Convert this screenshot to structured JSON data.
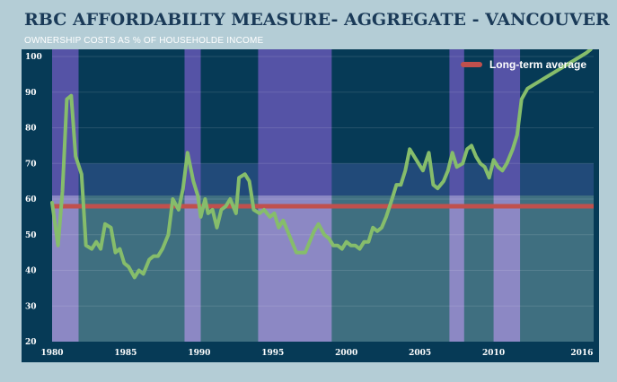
{
  "title": "RBC AFFORDABILTY MEASURE- AGGREGATE - VANCOUVER",
  "subtitle": "OWNERSHIP COSTS AS % OF HOUSEHOLDE INCOME",
  "legend": {
    "average_label": "Long-term average"
  },
  "colors": {
    "background": "#063a56",
    "recession_band": "#5553a6",
    "high_zone": "#214a79",
    "mid_zone": "#3f6f80",
    "mid_zone_recession": "#8c88c4",
    "series_line": "#86bd6b",
    "average_line": "#c0504d"
  },
  "chart_data": {
    "type": "line",
    "title": "RBC AFFORDABILTY MEASURE- AGGREGATE - VANCOUVER",
    "subtitle": "OWNERSHIP COSTS AS % OF HOUSEHOLDE INCOME",
    "xlabel": "",
    "ylabel": "",
    "xlim": [
      1980,
      2016.8
    ],
    "ylim": [
      20,
      100
    ],
    "x_ticks": [
      1980,
      1985,
      1990,
      1995,
      2000,
      2005,
      2010,
      2016
    ],
    "y_ticks": [
      20,
      30,
      40,
      50,
      60,
      70,
      80,
      90,
      100
    ],
    "grid": "horizontal",
    "legend_position": "top-right",
    "long_term_average": 58,
    "zones": [
      {
        "from": 58,
        "to": 61
      },
      {
        "from": 61,
        "to": 70
      }
    ],
    "recession_bands": [
      {
        "from": 1980,
        "to": 1981.8
      },
      {
        "from": 1989.0,
        "to": 1990.1
      },
      {
        "from": 1994.0,
        "to": 1999.0
      },
      {
        "from": 2007.0,
        "to": 2008.0
      },
      {
        "from": 2010.0,
        "to": 2011.8
      }
    ],
    "series": [
      {
        "name": "",
        "x": [
          1980.0,
          1980.4,
          1980.7,
          1981.0,
          1981.3,
          1981.6,
          1982.0,
          1982.3,
          1982.7,
          1983.0,
          1983.3,
          1983.6,
          1984.0,
          1984.3,
          1984.6,
          1984.9,
          1985.2,
          1985.6,
          1985.9,
          1986.2,
          1986.6,
          1986.9,
          1987.2,
          1987.5,
          1987.9,
          1988.2,
          1988.6,
          1988.9,
          1989.2,
          1989.6,
          1989.9,
          1990.1,
          1990.4,
          1990.6,
          1990.9,
          1991.2,
          1991.5,
          1991.8,
          1992.1,
          1992.5,
          1992.7,
          1993.1,
          1993.4,
          1993.7,
          1994.1,
          1994.4,
          1994.8,
          1995.1,
          1995.4,
          1995.7,
          1996.0,
          1996.3,
          1996.6,
          1996.9,
          1997.2,
          1997.5,
          1997.8,
          1998.1,
          1998.5,
          1998.8,
          1999.1,
          1999.4,
          1999.7,
          2000.0,
          2000.3,
          2000.6,
          2000.9,
          2001.2,
          2001.5,
          2001.8,
          2002.1,
          2002.4,
          2002.7,
          2003.1,
          2003.4,
          2003.7,
          2004.0,
          2004.3,
          2004.6,
          2004.9,
          2005.2,
          2005.6,
          2005.9,
          2006.2,
          2006.6,
          2006.9,
          2007.2,
          2007.5,
          2007.9,
          2008.2,
          2008.5,
          2008.8,
          2009.1,
          2009.4,
          2009.7,
          2010.0,
          2010.3,
          2010.6,
          2010.9,
          2011.3,
          2011.6,
          2011.9,
          2012.3,
          2012.7,
          2013.1,
          2013.5,
          2013.9,
          2014.3,
          2014.7,
          2015.1,
          2015.5,
          2015.9,
          2016.3,
          2016.6
        ],
        "values": [
          59,
          47,
          62,
          88,
          89,
          72,
          67,
          47,
          46,
          48,
          46,
          53,
          52,
          45,
          46,
          42,
          41,
          38,
          40,
          39,
          43,
          44,
          44,
          46,
          50,
          60,
          57,
          63,
          73,
          65,
          61,
          55,
          60,
          56,
          57,
          52,
          57,
          58,
          60,
          56,
          66,
          67,
          65,
          57,
          56,
          57,
          55,
          56,
          52,
          54,
          51,
          48,
          45,
          45,
          45,
          48,
          51,
          53,
          50,
          49,
          47,
          47,
          46,
          48,
          47,
          47,
          46,
          48,
          48,
          52,
          51,
          52,
          55,
          60,
          64,
          64,
          68,
          74,
          72,
          70,
          68,
          73,
          64,
          63,
          65,
          68,
          73,
          69,
          70,
          74,
          75,
          72,
          70,
          69,
          66,
          71,
          69,
          68,
          70,
          74,
          78,
          88,
          91,
          92,
          93,
          94,
          95,
          96,
          97,
          98,
          99,
          100,
          101,
          102
        ]
      }
    ]
  }
}
